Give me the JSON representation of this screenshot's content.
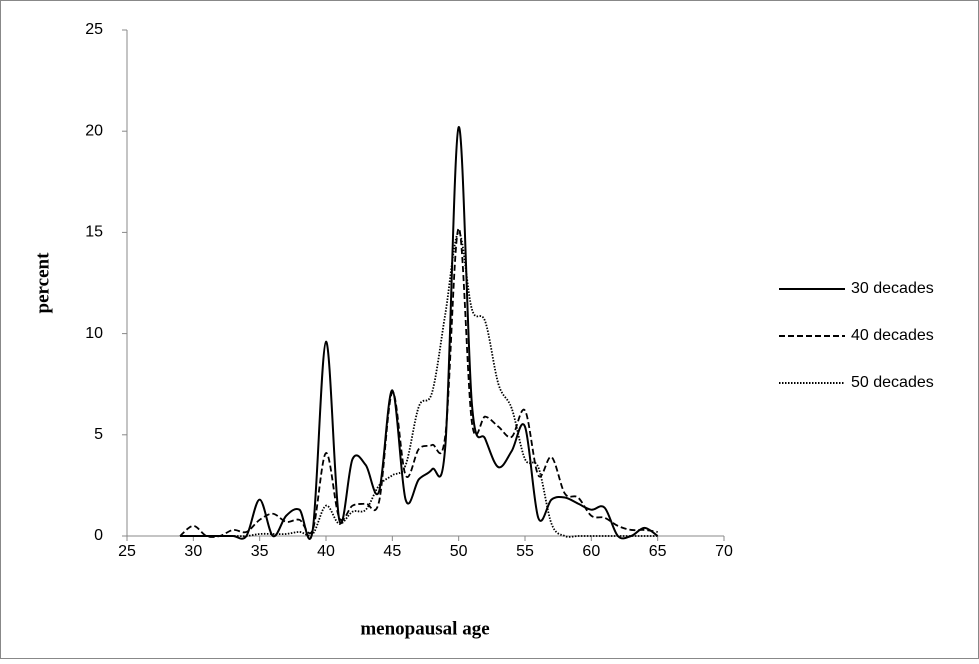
{
  "chart_data": {
    "type": "line",
    "x_label": "menopausal age",
    "y_label": "percent",
    "x": [
      29,
      30,
      31,
      32,
      33,
      34,
      35,
      36,
      37,
      38,
      39,
      40,
      41,
      42,
      43,
      44,
      45,
      46,
      47,
      48,
      49,
      50,
      51,
      52,
      53,
      54,
      55,
      56,
      57,
      58,
      59,
      60,
      61,
      62,
      63,
      64,
      65
    ],
    "series": [
      {
        "name": "30 decades",
        "color": "#000000",
        "dash": "solid",
        "values": [
          0,
          0,
          0,
          0,
          0,
          0,
          1.8,
          0,
          1,
          1.3,
          0.3,
          9.6,
          0.8,
          3.8,
          3.5,
          2.2,
          7.2,
          1.8,
          2.8,
          3.3,
          4.5,
          20.2,
          6.5,
          4.8,
          3.4,
          4.2,
          5.4,
          0.9,
          1.8,
          1.9,
          1.6,
          1.3,
          1.4,
          0,
          0,
          0.4,
          0
        ]
      },
      {
        "name": "40 decades",
        "color": "#000000",
        "dash": "dashed",
        "values": [
          0,
          0.5,
          0,
          0,
          0.3,
          0.2,
          0.8,
          1.1,
          0.7,
          0.8,
          0.3,
          4.1,
          0.9,
          1.5,
          1.6,
          1.7,
          7.1,
          3.0,
          4.3,
          4.5,
          5.0,
          15.2,
          5.6,
          5.9,
          5.4,
          4.9,
          6.2,
          3.0,
          3.9,
          2.1,
          1.9,
          1.0,
          0.9,
          0.5,
          0.3,
          0.3,
          0.2
        ]
      },
      {
        "name": "50 decades",
        "color": "#000000",
        "dash": "dotted",
        "values": [
          0,
          0,
          0,
          0,
          0,
          0,
          0.1,
          0.1,
          0.1,
          0.2,
          0.1,
          1.5,
          0.6,
          1.2,
          1.3,
          2.5,
          3.0,
          3.5,
          6.4,
          7.1,
          11.0,
          15.0,
          11.2,
          10.6,
          7.5,
          6.3,
          3.8,
          3.4,
          0.6,
          0,
          0,
          0,
          0,
          0,
          0,
          0,
          0
        ]
      }
    ],
    "xlim": [
      25,
      70
    ],
    "xticks": [
      25,
      30,
      35,
      40,
      45,
      50,
      55,
      60,
      65,
      70
    ],
    "ylim": [
      0,
      25
    ],
    "yticks": [
      0,
      5,
      10,
      15,
      20,
      25
    ],
    "grid": false,
    "smooth": true,
    "legend": "right"
  }
}
